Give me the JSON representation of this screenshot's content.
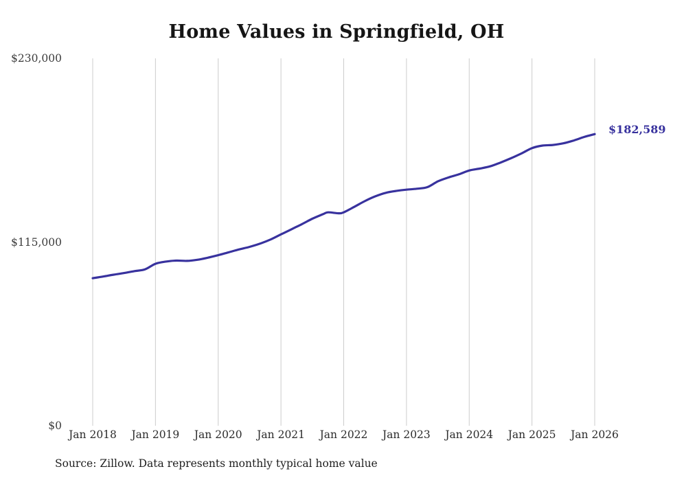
{
  "title": "Home Values in Springfield, OH",
  "end_label": "$182,589",
  "source": "Source: Zillow. Data represents monthly typical home value",
  "colors": {
    "line": "#38329e",
    "grid": "#cccccc",
    "end_label": "#38329e"
  },
  "chart_data": {
    "type": "line",
    "title": "Home Values in Springfield, OH",
    "xlabel": "",
    "ylabel": "",
    "xlim_months": [
      0,
      96
    ],
    "ylim": [
      0,
      230000
    ],
    "grid": "vertical-only",
    "legend": "none",
    "x_ticks": [
      {
        "month": 0,
        "label": "Jan 2018"
      },
      {
        "month": 12,
        "label": "Jan 2019"
      },
      {
        "month": 24,
        "label": "Jan 2020"
      },
      {
        "month": 36,
        "label": "Jan 2021"
      },
      {
        "month": 48,
        "label": "Jan 2022"
      },
      {
        "month": 60,
        "label": "Jan 2023"
      },
      {
        "month": 72,
        "label": "Jan 2024"
      },
      {
        "month": 84,
        "label": "Jan 2025"
      },
      {
        "month": 96,
        "label": "Jan 2026"
      }
    ],
    "y_ticks": [
      {
        "value": 0,
        "label": "$0"
      },
      {
        "value": 115000,
        "label": "$115,000"
      },
      {
        "value": 230000,
        "label": "$230,000"
      }
    ],
    "series": [
      {
        "name": "Typical home value",
        "points": [
          [
            0,
            92400
          ],
          [
            2,
            93400
          ],
          [
            4,
            94600
          ],
          [
            6,
            95600
          ],
          [
            8,
            96800
          ],
          [
            10,
            97900
          ],
          [
            12,
            101400
          ],
          [
            14,
            102800
          ],
          [
            16,
            103400
          ],
          [
            18,
            103200
          ],
          [
            20,
            103900
          ],
          [
            22,
            105200
          ],
          [
            24,
            106800
          ],
          [
            26,
            108600
          ],
          [
            28,
            110400
          ],
          [
            30,
            112000
          ],
          [
            32,
            114000
          ],
          [
            34,
            116600
          ],
          [
            36,
            119800
          ],
          [
            38,
            123000
          ],
          [
            40,
            126200
          ],
          [
            42,
            129600
          ],
          [
            44,
            132400
          ],
          [
            45,
            133600
          ],
          [
            47,
            133000
          ],
          [
            48,
            133600
          ],
          [
            50,
            137000
          ],
          [
            52,
            140600
          ],
          [
            54,
            143600
          ],
          [
            56,
            145800
          ],
          [
            58,
            147000
          ],
          [
            60,
            147800
          ],
          [
            62,
            148400
          ],
          [
            64,
            149400
          ],
          [
            66,
            153000
          ],
          [
            68,
            155400
          ],
          [
            70,
            157400
          ],
          [
            72,
            159800
          ],
          [
            74,
            161000
          ],
          [
            76,
            162400
          ],
          [
            78,
            164800
          ],
          [
            80,
            167500
          ],
          [
            82,
            170500
          ],
          [
            84,
            173800
          ],
          [
            86,
            175400
          ],
          [
            88,
            175800
          ],
          [
            90,
            176800
          ],
          [
            92,
            178600
          ],
          [
            94,
            180800
          ],
          [
            96,
            182589
          ]
        ]
      }
    ]
  }
}
